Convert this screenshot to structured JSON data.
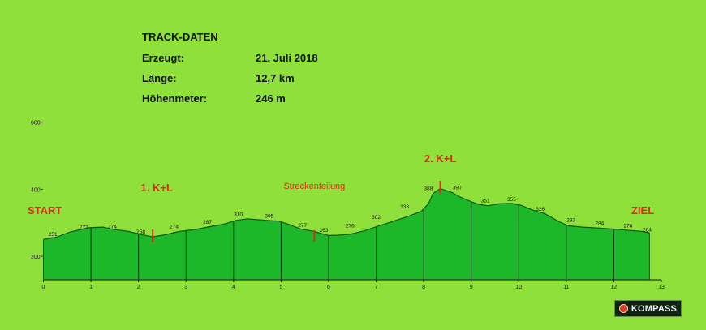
{
  "info": {
    "title": "TRACK-DATEN",
    "rows": [
      {
        "label": "Erzeugt:",
        "value": "21. Juli 2018"
      },
      {
        "label": "Länge:",
        "value": "12,7 km"
      },
      {
        "label": "Höhenmeter:",
        "value": "246 m"
      }
    ]
  },
  "brand": {
    "name": "KOMPASS",
    "icon": "kompass-logo-icon"
  },
  "colors": {
    "background": "#8fe03a",
    "profile_fill": "#1cb82a",
    "profile_line": "#0c5a10",
    "markers": "#e02a16"
  },
  "chart_data": {
    "type": "area",
    "xlim": [
      0,
      13
    ],
    "ylim": [
      130,
      600
    ],
    "x_ticks": [
      0,
      1,
      2,
      3,
      4,
      5,
      6,
      7,
      8,
      9,
      10,
      11,
      12,
      13
    ],
    "y_ticks": [
      200,
      400,
      600
    ],
    "km_gridlines": [
      1,
      2,
      3,
      4,
      5,
      6,
      7,
      8,
      9,
      10,
      11,
      12
    ],
    "series": [
      {
        "x": [
          0,
          0.3,
          0.55,
          0.95,
          1.25,
          1.4,
          1.8,
          2.05,
          2.3,
          2.55,
          2.85,
          3.2,
          3.45,
          3.8,
          4.05,
          4.3,
          4.45,
          4.7,
          4.95,
          5.15,
          5.4,
          5.7,
          5.85,
          6.0,
          6.2,
          6.45,
          6.75,
          7.0,
          7.3,
          7.65,
          7.95,
          8.1,
          8.2,
          8.35,
          8.6,
          8.75,
          8.95,
          9.15,
          9.35,
          9.6,
          9.85,
          10.05,
          10.25,
          10.55,
          10.85,
          11.05,
          11.35,
          11.7,
          12.1,
          12.35,
          12.6,
          12.75
        ],
        "y": [
          250,
          258,
          272,
          285,
          287,
          282,
          274,
          265,
          258,
          264,
          274,
          280,
          287,
          296,
          307,
          312,
          310,
          307,
          305,
          296,
          282,
          274,
          268,
          262,
          263,
          266,
          276,
          288,
          302,
          318,
          334,
          357,
          388,
          402,
          390,
          378,
          366,
          355,
          351,
          357,
          358,
          352,
          340,
          327,
          303,
          291,
          287,
          284,
          280,
          277,
          274,
          270
        ]
      }
    ],
    "point_labels": [
      {
        "x": 0.2,
        "y": 251,
        "text": "251"
      },
      {
        "x": 0.85,
        "y": 272,
        "text": "272"
      },
      {
        "x": 1.45,
        "y": 274,
        "text": "274"
      },
      {
        "x": 2.05,
        "y": 258,
        "text": "258"
      },
      {
        "x": 2.75,
        "y": 274,
        "text": "274"
      },
      {
        "x": 3.45,
        "y": 287,
        "text": "287"
      },
      {
        "x": 4.1,
        "y": 310,
        "text": "310"
      },
      {
        "x": 4.75,
        "y": 305,
        "text": "305"
      },
      {
        "x": 5.45,
        "y": 277,
        "text": "277"
      },
      {
        "x": 5.9,
        "y": 263,
        "text": "263"
      },
      {
        "x": 6.45,
        "y": 276,
        "text": "276"
      },
      {
        "x": 7.0,
        "y": 302,
        "text": "302"
      },
      {
        "x": 7.6,
        "y": 333,
        "text": "333"
      },
      {
        "x": 8.1,
        "y": 388,
        "text": "388"
      },
      {
        "x": 8.7,
        "y": 390,
        "text": "390"
      },
      {
        "x": 9.3,
        "y": 351,
        "text": "351"
      },
      {
        "x": 9.85,
        "y": 355,
        "text": "355"
      },
      {
        "x": 10.45,
        "y": 326,
        "text": "326"
      },
      {
        "x": 11.1,
        "y": 293,
        "text": "293"
      },
      {
        "x": 11.7,
        "y": 284,
        "text": "284"
      },
      {
        "x": 12.3,
        "y": 276,
        "text": "276"
      },
      {
        "x": 12.7,
        "y": 264,
        "text": "264"
      }
    ],
    "markers": [
      {
        "x": 2.3,
        "text": "1. K+L"
      },
      {
        "x": 5.7,
        "text": "Streckenteilung"
      },
      {
        "x": 8.35,
        "text": "2. K+L"
      }
    ],
    "start_label": "START",
    "end_label": "ZIEL",
    "grid": false
  }
}
